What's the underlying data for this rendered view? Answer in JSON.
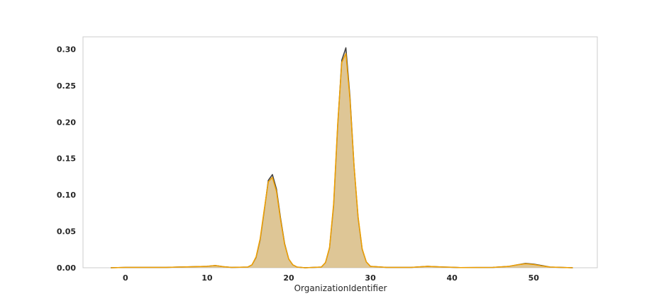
{
  "chart_data": {
    "type": "area",
    "title": "",
    "xlabel": "OrganizationIdentifier",
    "ylabel": "",
    "xlim": [
      -5.2,
      57.8
    ],
    "ylim": [
      0.0,
      0.317
    ],
    "x_ticks": [
      0,
      10,
      20,
      30,
      40,
      50
    ],
    "x_tick_labels": [
      "0",
      "10",
      "20",
      "30",
      "40",
      "50"
    ],
    "y_ticks": [
      0.0,
      0.05,
      0.1,
      0.15,
      0.2,
      0.25,
      0.3
    ],
    "y_tick_labels": [
      "0.00",
      "0.05",
      "0.10",
      "0.15",
      "0.20",
      "0.25",
      "0.30"
    ],
    "grid": false,
    "legend": "none",
    "series": [
      {
        "style": "filled-kde",
        "line_color": "#404040",
        "fill_color": "#9c9c9c",
        "x": [
          -1.8,
          0,
          5,
          10,
          11,
          12,
          13,
          15,
          15.5,
          16,
          16.5,
          17,
          17.5,
          18,
          18.5,
          19,
          19.5,
          20,
          20.5,
          21,
          22,
          24,
          24.5,
          25,
          25.5,
          26,
          26.5,
          27,
          27.5,
          28,
          28.5,
          29,
          29.5,
          30,
          32,
          35,
          37,
          39,
          41,
          45,
          47,
          48,
          49,
          50,
          51,
          52,
          54.8
        ],
        "y": [
          0.0,
          0.0005,
          0.0005,
          0.002,
          0.003,
          0.0015,
          0.0005,
          0.001,
          0.004,
          0.014,
          0.038,
          0.078,
          0.12,
          0.128,
          0.108,
          0.068,
          0.033,
          0.012,
          0.004,
          0.001,
          0.0,
          0.001,
          0.007,
          0.027,
          0.085,
          0.195,
          0.285,
          0.302,
          0.235,
          0.14,
          0.068,
          0.025,
          0.008,
          0.002,
          0.0005,
          0.0005,
          0.002,
          0.001,
          0.0003,
          0.0005,
          0.002,
          0.004,
          0.006,
          0.005,
          0.003,
          0.001,
          0.0
        ]
      },
      {
        "style": "filled-kde",
        "line_color": "#f0a000",
        "fill_color": "#f0c060",
        "x": [
          -1.8,
          0,
          5,
          10,
          11,
          12,
          13,
          15,
          15.5,
          16,
          16.5,
          17,
          17.5,
          18,
          18.5,
          19,
          19.5,
          20,
          20.5,
          21,
          22,
          24,
          24.5,
          25,
          25.5,
          26,
          26.5,
          27,
          27.5,
          28,
          28.5,
          29,
          29.5,
          30,
          32,
          35,
          37,
          39,
          41,
          45,
          47,
          48,
          49,
          50,
          51,
          52,
          54.8
        ],
        "y": [
          0.0,
          0.0005,
          0.0005,
          0.002,
          0.003,
          0.0015,
          0.0005,
          0.001,
          0.004,
          0.015,
          0.04,
          0.08,
          0.118,
          0.124,
          0.105,
          0.066,
          0.032,
          0.012,
          0.004,
          0.001,
          0.0,
          0.001,
          0.007,
          0.028,
          0.088,
          0.198,
          0.282,
          0.294,
          0.232,
          0.14,
          0.07,
          0.026,
          0.008,
          0.002,
          0.0005,
          0.0005,
          0.002,
          0.001,
          0.0003,
          0.0005,
          0.002,
          0.004,
          0.0055,
          0.0045,
          0.0025,
          0.001,
          0.0
        ]
      }
    ]
  }
}
